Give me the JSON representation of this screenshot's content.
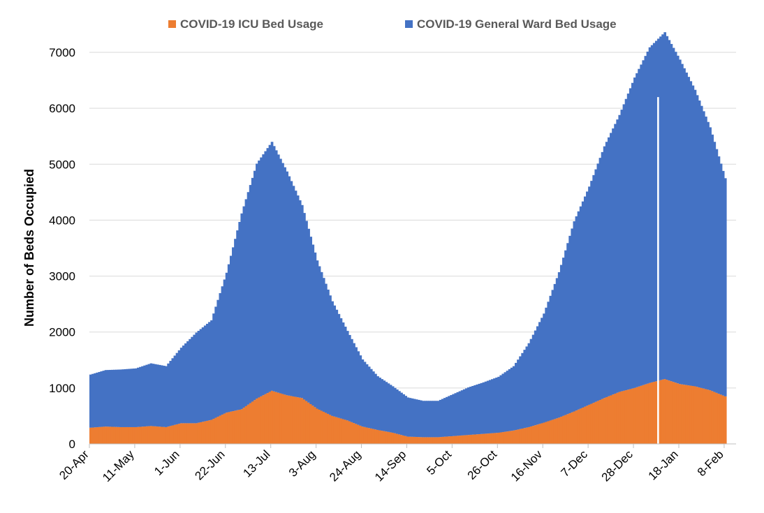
{
  "chart_data": {
    "type": "bar",
    "stacked": true,
    "title": "",
    "xlabel": "",
    "ylabel": "Number of Beds Occupied",
    "ylim": [
      0,
      7000
    ],
    "y_ticks": [
      0,
      1000,
      2000,
      3000,
      4000,
      5000,
      6000,
      7000
    ],
    "x_tick_labels": [
      "20-Apr",
      "11-May",
      "1-Jun",
      "22-Jun",
      "13-Jul",
      "3-Aug",
      "24-Aug",
      "14-Sep",
      "5-Oct",
      "26-Oct",
      "16-Nov",
      "7-Dec",
      "28-Dec",
      "18-Jan",
      "8-Feb"
    ],
    "x_range": [
      "20-Apr",
      "8-Feb"
    ],
    "grid": "horizontal",
    "legend_position": "top",
    "series": [
      {
        "name": "COVID-19 ICU Bed Usage",
        "color": "#ED7D31",
        "points": [
          [
            "20-Apr",
            290
          ],
          [
            "27-Apr",
            310
          ],
          [
            "4-May",
            300
          ],
          [
            "11-May",
            300
          ],
          [
            "18-May",
            320
          ],
          [
            "25-May",
            300
          ],
          [
            "1-Jun",
            370
          ],
          [
            "8-Jun",
            370
          ],
          [
            "15-Jun",
            430
          ],
          [
            "22-Jun",
            560
          ],
          [
            "29-Jun",
            620
          ],
          [
            "6-Jul",
            810
          ],
          [
            "13-Jul",
            950
          ],
          [
            "20-Jul",
            870
          ],
          [
            "27-Jul",
            820
          ],
          [
            "3-Aug",
            630
          ],
          [
            "10-Aug",
            500
          ],
          [
            "17-Aug",
            420
          ],
          [
            "24-Aug",
            310
          ],
          [
            "31-Aug",
            250
          ],
          [
            "7-Sep",
            200
          ],
          [
            "14-Sep",
            130
          ],
          [
            "21-Sep",
            120
          ],
          [
            "28-Sep",
            120
          ],
          [
            "5-Oct",
            140
          ],
          [
            "12-Oct",
            160
          ],
          [
            "19-Oct",
            180
          ],
          [
            "26-Oct",
            200
          ],
          [
            "2-Nov",
            240
          ],
          [
            "9-Nov",
            300
          ],
          [
            "16-Nov",
            380
          ],
          [
            "23-Nov",
            470
          ],
          [
            "30-Nov",
            580
          ],
          [
            "7-Dec",
            700
          ],
          [
            "14-Dec",
            820
          ],
          [
            "21-Dec",
            930
          ],
          [
            "28-Dec",
            1000
          ],
          [
            "4-Jan",
            1090
          ],
          [
            "11-Jan",
            1160
          ],
          [
            "18-Jan",
            1070
          ],
          [
            "25-Jan",
            1030
          ],
          [
            "1-Feb",
            960
          ],
          [
            "8-Feb",
            850
          ]
        ]
      },
      {
        "name": "COVID-19 General Ward Bed Usage",
        "color": "#4472C4",
        "points": [
          [
            "20-Apr",
            950
          ],
          [
            "27-Apr",
            1010
          ],
          [
            "4-May",
            1030
          ],
          [
            "11-May",
            1050
          ],
          [
            "18-May",
            1120
          ],
          [
            "25-May",
            1090
          ],
          [
            "1-Jun",
            1350
          ],
          [
            "8-Jun",
            1620
          ],
          [
            "15-Jun",
            1780
          ],
          [
            "22-Jun",
            2500
          ],
          [
            "29-Jun",
            3500
          ],
          [
            "6-Jul",
            4200
          ],
          [
            "13-Jul",
            4450
          ],
          [
            "20-Jul",
            4000
          ],
          [
            "27-Jul",
            3450
          ],
          [
            "3-Aug",
            2650
          ],
          [
            "10-Aug",
            2050
          ],
          [
            "17-Aug",
            1600
          ],
          [
            "24-Aug",
            1200
          ],
          [
            "31-Aug",
            960
          ],
          [
            "7-Sep",
            830
          ],
          [
            "14-Sep",
            700
          ],
          [
            "21-Sep",
            650
          ],
          [
            "28-Sep",
            650
          ],
          [
            "5-Oct",
            750
          ],
          [
            "12-Oct",
            850
          ],
          [
            "19-Oct",
            920
          ],
          [
            "26-Oct",
            1000
          ],
          [
            "2-Nov",
            1150
          ],
          [
            "9-Nov",
            1500
          ],
          [
            "16-Nov",
            1950
          ],
          [
            "23-Nov",
            2600
          ],
          [
            "30-Nov",
            3400
          ],
          [
            "7-Dec",
            3900
          ],
          [
            "14-Dec",
            4500
          ],
          [
            "21-Dec",
            4950
          ],
          [
            "28-Dec",
            5550
          ],
          [
            "4-Jan",
            6000
          ],
          [
            "11-Jan",
            6200
          ],
          [
            "18-Jan",
            5800
          ],
          [
            "25-Jan",
            5300
          ],
          [
            "1-Feb",
            4700
          ],
          [
            "8-Feb",
            3900
          ]
        ]
      }
    ]
  }
}
